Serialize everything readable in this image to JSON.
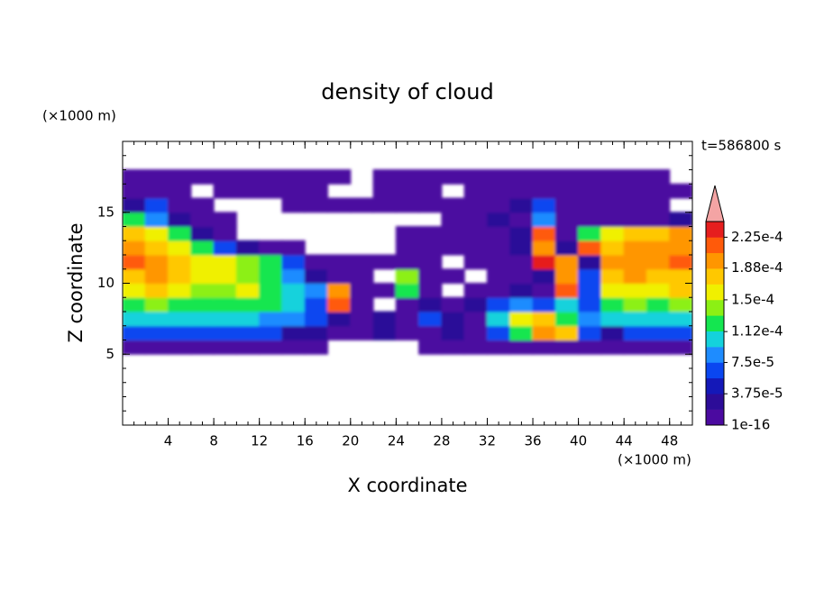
{
  "chart_data": {
    "type": "contour",
    "title": "density of cloud",
    "x_label": "X coordinate",
    "y_label": "Z coordinate",
    "x_unit": "(×1000 m)",
    "y_unit": "(×1000 m)",
    "annotation": "t=586800 s",
    "xlim": [
      0,
      50
    ],
    "ylim": [
      0,
      20
    ],
    "xticks": [
      4,
      8,
      12,
      16,
      20,
      24,
      28,
      32,
      36,
      40,
      44,
      48
    ],
    "yticks": [
      5,
      10,
      15
    ],
    "xminor": 1,
    "yminor": 1,
    "x": [
      1,
      3,
      5,
      7,
      9,
      11,
      13,
      15,
      17,
      19,
      21,
      23,
      25,
      27,
      29,
      31,
      33,
      35,
      37,
      39,
      41,
      43,
      45,
      47,
      49
    ],
    "y": [
      5.5,
      6.5,
      7.5,
      8.5,
      9.5,
      10.5,
      11.5,
      12.5,
      13.5,
      14.5,
      15.5,
      16.5,
      17.5
    ],
    "z": [
      [
        5e-06,
        5e-06,
        5e-06,
        5e-06,
        5e-06,
        5e-06,
        5e-06,
        5e-06,
        5e-06,
        null,
        null,
        null,
        null,
        5e-06,
        5e-06,
        5e-06,
        5e-06,
        5e-06,
        5e-06,
        5e-06,
        5e-06,
        5e-06,
        5e-06,
        5e-06,
        5e-06
      ],
      [
        6.5e-05,
        6.5e-05,
        6.5e-05,
        6.5e-05,
        6.5e-05,
        6.5e-05,
        6.5e-05,
        2.5e-05,
        2.5e-05,
        5e-06,
        5e-06,
        2.5e-05,
        5e-06,
        5e-06,
        2.5e-05,
        5e-06,
        6.5e-05,
        0.00012,
        0.000195,
        0.00018,
        6.5e-05,
        2.5e-05,
        6.5e-05,
        6.5e-05,
        6.5e-05
      ],
      [
        0.0001,
        0.0001,
        0.0001,
        0.0001,
        0.0001,
        0.0001,
        8.5e-05,
        8.5e-05,
        6.5e-05,
        2.5e-05,
        5e-06,
        2.5e-05,
        5e-06,
        6.5e-05,
        2.5e-05,
        5e-06,
        0.0001,
        0.00016,
        0.00018,
        0.00012,
        8.5e-05,
        0.0001,
        0.0001,
        0.0001,
        0.0001
      ],
      [
        0.00012,
        0.00014,
        0.00012,
        0.00012,
        0.00012,
        0.00012,
        0.00012,
        0.0001,
        6.5e-05,
        0.000215,
        5e-06,
        null,
        5e-06,
        2.5e-05,
        5e-06,
        2.5e-05,
        6.5e-05,
        8.5e-05,
        6.5e-05,
        0.0001,
        6.5e-05,
        0.00012,
        0.00014,
        0.00012,
        0.00014
      ],
      [
        0.00016,
        0.00018,
        0.00016,
        0.00014,
        0.00014,
        0.00016,
        0.00012,
        0.0001,
        8.5e-05,
        0.000195,
        5e-06,
        5e-06,
        0.00012,
        5e-06,
        null,
        5e-06,
        5e-06,
        2.5e-05,
        5e-06,
        0.000215,
        6.5e-05,
        0.00016,
        0.00016,
        0.00016,
        0.00018
      ],
      [
        0.00018,
        0.000195,
        0.00018,
        0.00016,
        0.00016,
        0.00014,
        0.00012,
        8.5e-05,
        2.5e-05,
        5e-06,
        5e-06,
        null,
        0.00014,
        5e-06,
        5e-06,
        null,
        5e-06,
        5e-06,
        2.5e-05,
        0.000195,
        6.5e-05,
        0.00018,
        0.000195,
        0.00018,
        0.00018
      ],
      [
        0.000215,
        0.000195,
        0.00018,
        0.00016,
        0.00016,
        0.00014,
        0.00012,
        6.5e-05,
        5e-06,
        5e-06,
        5e-06,
        5e-06,
        5e-06,
        5e-06,
        null,
        5e-06,
        5e-06,
        5e-06,
        0.00023,
        0.000195,
        2.5e-05,
        0.000195,
        0.000195,
        0.000195,
        0.000215
      ],
      [
        0.000195,
        0.00018,
        0.00016,
        0.00012,
        6.5e-05,
        2.5e-05,
        5e-06,
        5e-06,
        null,
        null,
        null,
        null,
        5e-06,
        5e-06,
        5e-06,
        5e-06,
        5e-06,
        2.5e-05,
        0.000195,
        2.5e-05,
        0.000215,
        0.00018,
        0.000195,
        0.000195,
        0.000195
      ],
      [
        0.00018,
        0.00016,
        0.00012,
        2.5e-05,
        5e-06,
        null,
        null,
        null,
        null,
        null,
        null,
        null,
        5e-06,
        5e-06,
        5e-06,
        5e-06,
        5e-06,
        2.5e-05,
        0.000215,
        5e-06,
        0.00012,
        0.00016,
        0.00018,
        0.00018,
        0.000195
      ],
      [
        0.00012,
        8.5e-05,
        2.5e-05,
        5e-06,
        5e-06,
        null,
        null,
        null,
        null,
        null,
        null,
        null,
        null,
        null,
        5e-06,
        5e-06,
        2.5e-05,
        5e-06,
        8.5e-05,
        5e-06,
        5e-06,
        5e-06,
        5e-06,
        5e-06,
        2.5e-05
      ],
      [
        2.5e-05,
        6.5e-05,
        5e-06,
        5e-06,
        null,
        null,
        null,
        5e-06,
        5e-06,
        5e-06,
        5e-06,
        5e-06,
        5e-06,
        5e-06,
        5e-06,
        5e-06,
        5e-06,
        2.5e-05,
        6.5e-05,
        5e-06,
        5e-06,
        5e-06,
        5e-06,
        5e-06,
        null
      ],
      [
        5e-06,
        5e-06,
        5e-06,
        null,
        5e-06,
        5e-06,
        5e-06,
        5e-06,
        5e-06,
        null,
        null,
        5e-06,
        5e-06,
        5e-06,
        null,
        5e-06,
        5e-06,
        5e-06,
        5e-06,
        5e-06,
        5e-06,
        5e-06,
        5e-06,
        5e-06,
        5e-06
      ],
      [
        5e-06,
        5e-06,
        5e-06,
        5e-06,
        5e-06,
        5e-06,
        5e-06,
        5e-06,
        5e-06,
        5e-06,
        null,
        5e-06,
        5e-06,
        5e-06,
        5e-06,
        5e-06,
        5e-06,
        5e-06,
        5e-06,
        5e-06,
        5e-06,
        5e-06,
        5e-06,
        5e-06,
        null
      ]
    ],
    "colorbar": {
      "colors": [
        "#4b0aa0",
        "#2c0c98",
        "#1418b8",
        "#0a46f0",
        "#1e8cff",
        "#14d2dc",
        "#14e650",
        "#8cf014",
        "#f0f000",
        "#ffc800",
        "#ff9600",
        "#ff5a0a",
        "#e61e1e"
      ],
      "extend_color": "#f4a4a4",
      "clim": [
        1e-16,
        0.00024375
      ],
      "ticks": [
        1e-16,
        {
          "value": 3.75e-05,
          "label": "3.75e-5"
        },
        {
          "value": 7.5e-05,
          "label": "7.5e-5"
        },
        {
          "value": 0.000112,
          "label": "1.12e-4"
        },
        {
          "value": 0.00015,
          "label": "1.5e-4"
        },
        {
          "value": 0.000188,
          "label": "1.88e-4"
        },
        {
          "value": 0.000225,
          "label": "2.25e-4"
        }
      ]
    }
  }
}
